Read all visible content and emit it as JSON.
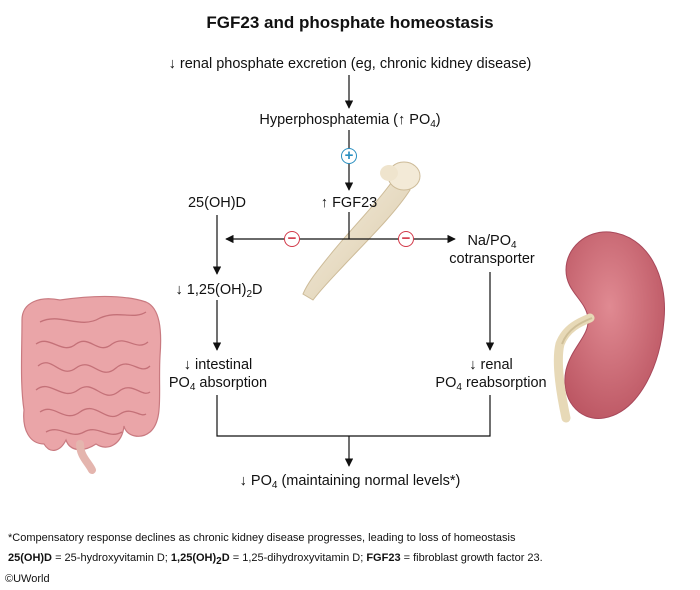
{
  "title": "FGF23 and phosphate homeostasis",
  "nodes": {
    "renal_excretion": "↓ renal phosphate excretion (eg, chronic kidney disease)",
    "hyperphosphatemia": "Hyperphosphatemia (↑ PO",
    "hyperphosphatemia_sub": "4",
    "hyperphosphatemia_end": ")",
    "fgf23": "↑ FGF23",
    "vitd25": "25(OH)D",
    "vitd125_pre": "↓ 1,25(OH)",
    "vitd125_sub": "2",
    "vitd125_post": "D",
    "napo4_l1_pre": "Na/PO",
    "napo4_l1_sub": "4",
    "napo4_l2": "cotransporter",
    "intestinal_l1": "↓ intestinal",
    "intestinal_l2_pre": "PO",
    "intestinal_l2_sub": "4",
    "intestinal_l2_post": " absorption",
    "renal_l1": "↓ renal",
    "renal_l2_pre": "PO",
    "renal_l2_sub": "4",
    "renal_l2_post": " reabsorption",
    "result_pre": "↓ PO",
    "result_sub": "4",
    "result_post": " (maintaining normal levels*)"
  },
  "symbols": {
    "stimulate": "+",
    "inhibit": "−"
  },
  "footnote": "*Compensatory response declines as chronic kidney disease progresses, leading to loss of homeostasis",
  "abbreviations": {
    "a1": "25(OH)D",
    "a1_def": " = 25-hydroxyvitamin D; ",
    "a2_pre": "1,25(OH)",
    "a2_sub": "2",
    "a2_post": "D",
    "a2_def": " = 1,25-dihydroxyvitamin D; ",
    "a3": "FGF23",
    "a3_def": " = fibroblast growth factor 23."
  },
  "copyright": "©UWorld",
  "colors": {
    "plus": "#2a8fc0",
    "minus": "#d23a4a",
    "kidney": "#cf6b76",
    "intestine": "#e49aa0",
    "bone": "#e8dcc4"
  },
  "icons": [
    "bone-illustration",
    "kidney-illustration",
    "intestine-illustration"
  ]
}
